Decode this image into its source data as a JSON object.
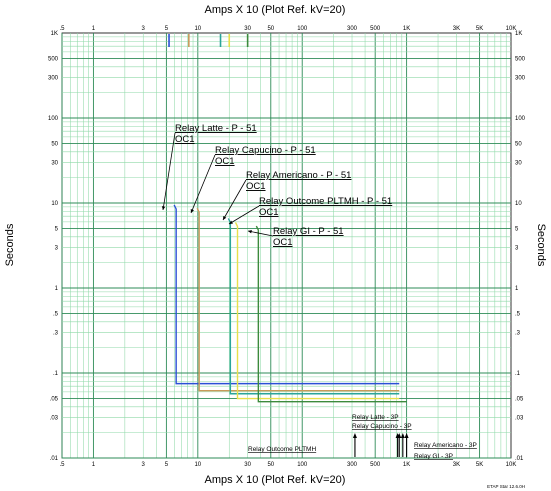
{
  "chart_data": {
    "type": "line",
    "title": "Amps  X  10 (Plot Ref. kV=20)",
    "xlabel": "Amps  X  10 (Plot Ref. kV=20)",
    "ylabel": "Seconds",
    "xscale": "log",
    "yscale": "log",
    "xlim": [
      0.5,
      10000
    ],
    "ylim": [
      0.01,
      1000
    ],
    "grid": true,
    "x_ticks": [
      ".5",
      "1",
      "3",
      "5",
      "10",
      "30",
      "50",
      "100",
      "300",
      "500",
      "1K",
      "3K",
      "5K",
      "10K"
    ],
    "x_tick_values": [
      0.5,
      1,
      3,
      5,
      10,
      30,
      50,
      100,
      300,
      500,
      1000,
      3000,
      5000,
      10000
    ],
    "y_ticks": [
      ".01",
      ".03",
      ".05",
      ".1",
      ".3",
      ".5",
      "1",
      "3",
      "5",
      "10",
      "30",
      "50",
      "100",
      "300",
      "500",
      "1K"
    ],
    "y_tick_values": [
      0.01,
      0.03,
      0.05,
      0.1,
      0.3,
      0.5,
      1,
      3,
      5,
      10,
      30,
      50,
      100,
      300,
      500,
      1000
    ],
    "series": [
      {
        "name": "Relay Latte - P - 51",
        "sub": "OC1",
        "color": "#2b4fd6",
        "pickup": 6.2,
        "t_high": 8.5,
        "t_low": 0.075,
        "x_end": 850,
        "top_marker": 5.3
      },
      {
        "name": "Relay Capucino - P - 51",
        "sub": "OC1",
        "color": "#c99a5a",
        "pickup": 10.3,
        "t_high": 7.8,
        "t_low": 0.062,
        "x_end": 850,
        "top_marker": 8.2
      },
      {
        "name": "Relay Americano - P - 51",
        "sub": "OC1",
        "color": "#2aa59a",
        "pickup": 20.5,
        "t_high": 5.9,
        "t_low": 0.057,
        "x_end": 850,
        "top_marker": 16.5
      },
      {
        "name": "Relay Outcome PLTMH - P - 51",
        "sub": "OC1",
        "color": "#e8e04a",
        "pickup": 24,
        "t_high": 5.3,
        "t_low": 0.05,
        "x_end": 850,
        "top_marker": 20
      },
      {
        "name": "Relay GI - P - 51",
        "sub": "OC1",
        "color": "#3c8a3c",
        "pickup": 38,
        "t_high": 4.8,
        "t_low": 0.046,
        "x_end": 1000,
        "top_marker": 30
      }
    ],
    "bottom_labels": [
      {
        "text": "Relay Outcome PLTMH",
        "x": 320
      },
      {
        "text": "Relay Latte - 3P",
        "x": 820
      },
      {
        "text": "Relay Capucino - 3P",
        "x": 850
      },
      {
        "text": "Relay Americano - 3P",
        "x": 1000
      },
      {
        "text": "Relay GI - 3P",
        "x": 920
      }
    ]
  },
  "footer": "ETAP Star 12.6.0H"
}
